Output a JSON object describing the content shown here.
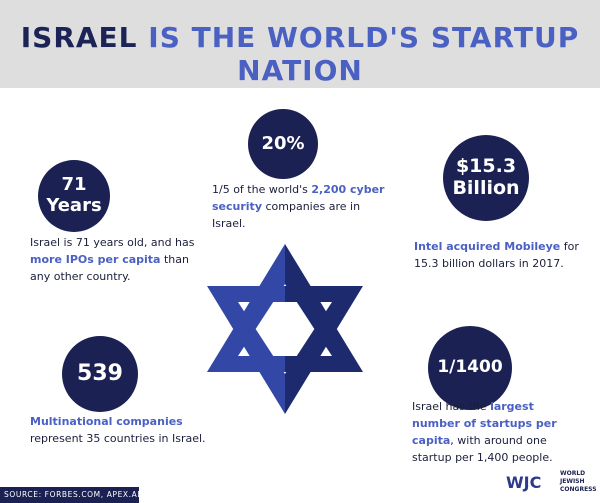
{
  "title": {
    "part1": "ISRAEL",
    "part2": "IS THE WORLD'S STARTUP NATION"
  },
  "stat_years": {
    "line1": "71",
    "line2": "Years",
    "text_a": "Israel is 71 years old, and has",
    "text_hl": "more IPOs per capita",
    "text_b": "than any other country."
  },
  "stat_cyber": {
    "value": "20%",
    "text_a": "1/5 of the world's",
    "text_hl": "2,200 cyber security",
    "text_b": "companies are in Israel."
  },
  "stat_mobileye": {
    "line1": "$15.3",
    "line2": "Billion",
    "text_hl": "Intel acquired Mobileye",
    "text_b": "for 15.3 billion dollars in 2017."
  },
  "stat_multinational": {
    "value": "539",
    "text_hl": "Multinational companies",
    "text_b": "represent 35 countries in Israel."
  },
  "stat_startups": {
    "value": "1/1400",
    "text_a": "Israel has the",
    "text_hl": "largest number of startups per capita",
    "text_b": ", with around one startup per 1,400 people."
  },
  "source": "SOURCE: FORBES.COM, APEX.AERO",
  "logo": {
    "mark": "WJC",
    "line1": "WORLD",
    "line2": "JEWISH",
    "line3": "CONGRESS"
  },
  "colors": {
    "navy": "#1b2153",
    "accent": "#4a60c3",
    "header_bg": "#dedede",
    "star_light": "#3348a6",
    "star_dark": "#1d2a6e"
  },
  "icons": {
    "center": "star-of-david-icon"
  }
}
